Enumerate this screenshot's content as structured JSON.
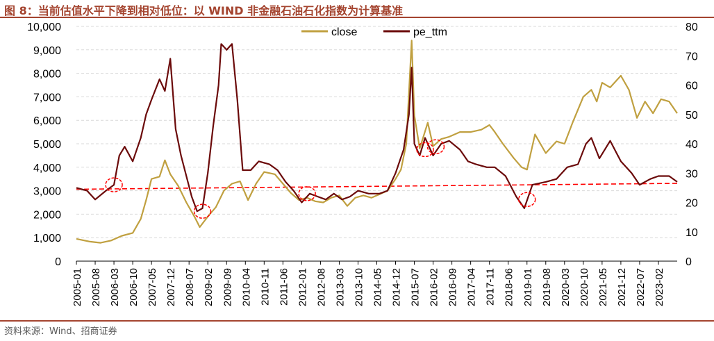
{
  "title": "图 8：当前估值水平下降到相对低位：以 WIND 非金融石油石化指数为计算基准",
  "source": "资料来源：Wind、招商证券",
  "colors": {
    "close": "#c0a040",
    "pe_ttm": "#6b0a0a",
    "trend": "#ff0000",
    "accent": "#a4442f"
  },
  "chart_data": {
    "type": "line",
    "title": "",
    "xlabel": "",
    "ylabel": "",
    "legend_position": "top-center",
    "grid": true,
    "x_tick_labels": [
      "2005-01",
      "2005-08",
      "2006-03",
      "2006-10",
      "2007-05",
      "2007-12",
      "2008-07",
      "2009-02",
      "2009-09",
      "2010-04",
      "2010-11",
      "2011-06",
      "2012-01",
      "2012-08",
      "2013-03",
      "2013-10",
      "2014-05",
      "2014-12",
      "2015-07",
      "2016-02",
      "2016-09",
      "2017-04",
      "2017-11",
      "2018-06",
      "2019-01",
      "2019-08",
      "2020-03",
      "2020-10",
      "2021-05",
      "2021-12",
      "2022-07",
      "2023-02"
    ],
    "y_left": {
      "min": 0,
      "max": 10000,
      "ticks": [
        "0",
        "1,000",
        "2,000",
        "3,000",
        "4,000",
        "5,000",
        "6,000",
        "7,000",
        "8,000",
        "9,000",
        "10,000"
      ]
    },
    "y_right": {
      "min": 0,
      "max": 80,
      "ticks": [
        "0",
        "10",
        "20",
        "30",
        "40",
        "50",
        "60",
        "70",
        "80"
      ]
    },
    "series": [
      {
        "name": "close",
        "axis": "left",
        "points": [
          [
            "2005-01",
            950
          ],
          [
            "2005-06",
            830
          ],
          [
            "2005-10",
            780
          ],
          [
            "2006-02",
            880
          ],
          [
            "2006-06",
            1080
          ],
          [
            "2006-10",
            1200
          ],
          [
            "2007-01",
            1800
          ],
          [
            "2007-03",
            2600
          ],
          [
            "2007-05",
            3500
          ],
          [
            "2007-08",
            3600
          ],
          [
            "2007-10",
            4300
          ],
          [
            "2007-12",
            3700
          ],
          [
            "2008-03",
            3200
          ],
          [
            "2008-06",
            2500
          ],
          [
            "2008-09",
            1900
          ],
          [
            "2008-11",
            1450
          ],
          [
            "2009-02",
            1900
          ],
          [
            "2009-05",
            2300
          ],
          [
            "2009-08",
            3000
          ],
          [
            "2009-11",
            3300
          ],
          [
            "2010-02",
            3400
          ],
          [
            "2010-05",
            2600
          ],
          [
            "2010-08",
            3300
          ],
          [
            "2010-11",
            3800
          ],
          [
            "2011-03",
            3700
          ],
          [
            "2011-06",
            3300
          ],
          [
            "2011-09",
            2900
          ],
          [
            "2011-12",
            2600
          ],
          [
            "2012-03",
            2700
          ],
          [
            "2012-06",
            2550
          ],
          [
            "2012-09",
            2500
          ],
          [
            "2012-12",
            2700
          ],
          [
            "2013-03",
            2800
          ],
          [
            "2013-06",
            2350
          ],
          [
            "2013-09",
            2700
          ],
          [
            "2013-12",
            2800
          ],
          [
            "2014-03",
            2700
          ],
          [
            "2014-06",
            2850
          ],
          [
            "2014-09",
            3000
          ],
          [
            "2014-12",
            3500
          ],
          [
            "2015-02",
            3900
          ],
          [
            "2015-04",
            5000
          ],
          [
            "2015-06",
            9400
          ],
          [
            "2015-07",
            6200
          ],
          [
            "2015-09",
            4800
          ],
          [
            "2015-12",
            5900
          ],
          [
            "2016-02",
            4900
          ],
          [
            "2016-05",
            5200
          ],
          [
            "2016-08",
            5300
          ],
          [
            "2016-12",
            5500
          ],
          [
            "2017-04",
            5500
          ],
          [
            "2017-08",
            5600
          ],
          [
            "2017-11",
            5800
          ],
          [
            "2018-01",
            5500
          ],
          [
            "2018-04",
            5000
          ],
          [
            "2018-08",
            4400
          ],
          [
            "2018-11",
            4000
          ],
          [
            "2019-01",
            3900
          ],
          [
            "2019-04",
            5400
          ],
          [
            "2019-08",
            4600
          ],
          [
            "2019-12",
            5100
          ],
          [
            "2020-03",
            5000
          ],
          [
            "2020-06",
            5900
          ],
          [
            "2020-10",
            7000
          ],
          [
            "2021-01",
            7300
          ],
          [
            "2021-03",
            6800
          ],
          [
            "2021-05",
            7600
          ],
          [
            "2021-08",
            7400
          ],
          [
            "2021-12",
            7900
          ],
          [
            "2022-03",
            7300
          ],
          [
            "2022-06",
            6100
          ],
          [
            "2022-09",
            6800
          ],
          [
            "2022-12",
            6300
          ],
          [
            "2023-03",
            6900
          ],
          [
            "2023-06",
            6800
          ],
          [
            "2023-09",
            6300
          ]
        ]
      },
      {
        "name": "pe_ttm",
        "axis": "right",
        "points": [
          [
            "2005-01",
            25
          ],
          [
            "2005-05",
            24
          ],
          [
            "2005-08",
            21
          ],
          [
            "2005-12",
            24
          ],
          [
            "2006-03",
            26
          ],
          [
            "2006-05",
            36
          ],
          [
            "2006-07",
            39
          ],
          [
            "2006-10",
            34
          ],
          [
            "2007-01",
            42
          ],
          [
            "2007-03",
            50
          ],
          [
            "2007-05",
            55
          ],
          [
            "2007-08",
            62
          ],
          [
            "2007-10",
            58
          ],
          [
            "2007-12",
            69
          ],
          [
            "2008-02",
            45
          ],
          [
            "2008-04",
            36
          ],
          [
            "2008-06",
            29
          ],
          [
            "2008-08",
            22
          ],
          [
            "2008-10",
            17
          ],
          [
            "2008-12",
            18
          ],
          [
            "2009-02",
            30
          ],
          [
            "2009-04",
            46
          ],
          [
            "2009-06",
            60
          ],
          [
            "2009-07",
            74
          ],
          [
            "2009-09",
            72
          ],
          [
            "2009-11",
            74
          ],
          [
            "2010-01",
            55
          ],
          [
            "2010-03",
            31
          ],
          [
            "2010-06",
            31
          ],
          [
            "2010-09",
            34
          ],
          [
            "2011-01",
            33
          ],
          [
            "2011-04",
            31
          ],
          [
            "2011-07",
            27
          ],
          [
            "2011-10",
            24
          ],
          [
            "2012-01",
            20
          ],
          [
            "2012-04",
            23
          ],
          [
            "2012-07",
            22
          ],
          [
            "2012-10",
            21
          ],
          [
            "2013-01",
            23
          ],
          [
            "2013-04",
            21
          ],
          [
            "2013-07",
            22
          ],
          [
            "2013-10",
            24
          ],
          [
            "2014-02",
            23
          ],
          [
            "2014-06",
            23
          ],
          [
            "2014-09",
            24
          ],
          [
            "2014-12",
            30
          ],
          [
            "2015-03",
            38
          ],
          [
            "2015-05",
            50
          ],
          [
            "2015-06",
            66
          ],
          [
            "2015-07",
            40
          ],
          [
            "2015-09",
            36
          ],
          [
            "2015-11",
            42
          ],
          [
            "2016-02",
            36
          ],
          [
            "2016-05",
            40
          ],
          [
            "2016-08",
            41
          ],
          [
            "2016-12",
            38
          ],
          [
            "2017-03",
            34
          ],
          [
            "2017-06",
            33
          ],
          [
            "2017-10",
            32
          ],
          [
            "2018-01",
            32
          ],
          [
            "2018-05",
            29
          ],
          [
            "2018-09",
            22
          ],
          [
            "2018-12",
            18
          ],
          [
            "2019-03",
            26
          ],
          [
            "2019-08",
            27
          ],
          [
            "2019-12",
            28
          ],
          [
            "2020-04",
            32
          ],
          [
            "2020-08",
            33
          ],
          [
            "2020-11",
            40
          ],
          [
            "2021-01",
            42
          ],
          [
            "2021-04",
            35
          ],
          [
            "2021-08",
            41
          ],
          [
            "2021-12",
            34
          ],
          [
            "2022-04",
            30
          ],
          [
            "2022-07",
            26
          ],
          [
            "2022-11",
            28
          ],
          [
            "2023-02",
            29
          ],
          [
            "2023-06",
            29
          ],
          [
            "2023-09",
            27
          ]
        ]
      }
    ],
    "trend_line": {
      "axis": "right",
      "from": [
        "2005-01",
        24.5
      ],
      "to": [
        "2023-09",
        26.5
      ]
    },
    "highlights": [
      {
        "axis": "right",
        "date": "2006-03",
        "value": 26
      },
      {
        "axis": "right",
        "date": "2008-12",
        "value": 17
      },
      {
        "axis": "right",
        "date": "2012-03",
        "value": 23
      },
      {
        "axis": "right",
        "date": "2015-11",
        "value": 38
      },
      {
        "axis": "right",
        "date": "2016-03",
        "value": 39
      },
      {
        "axis": "right",
        "date": "2019-01",
        "value": 21
      }
    ]
  }
}
